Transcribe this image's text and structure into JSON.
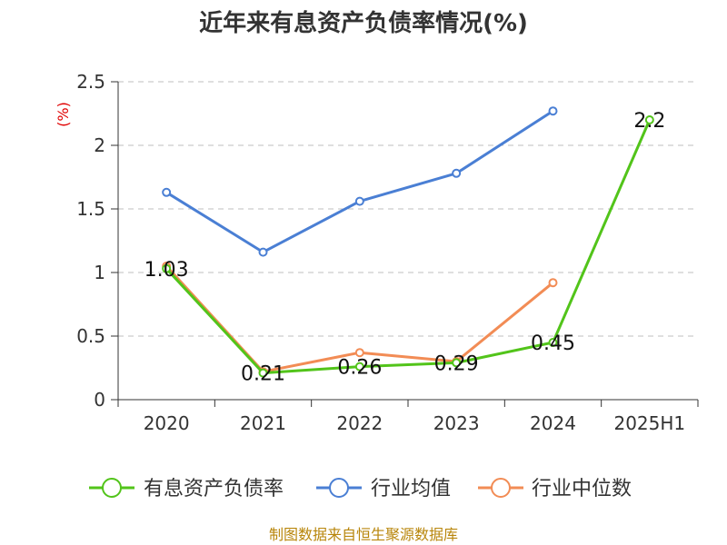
{
  "chart_data": {
    "type": "line",
    "title": "近年来有息资产负债率情况(%)",
    "ylabel": "(%)",
    "categories": [
      "2020",
      "2021",
      "2022",
      "2023",
      "2024",
      "2025H1"
    ],
    "ylim": [
      0,
      2.5
    ],
    "yticks": [
      "0",
      "0.5",
      "1",
      "1.5",
      "2",
      "2.5"
    ],
    "grid": true,
    "legend_position": "bottom",
    "series": [
      {
        "name": "有息资产负债率",
        "color": "#52c41a",
        "values": [
          1.03,
          0.21,
          0.26,
          0.29,
          0.45,
          2.2
        ],
        "labels": [
          "1.03",
          "0.21",
          "0.26",
          "0.29",
          "0.45",
          "2.2"
        ]
      },
      {
        "name": "行业均值",
        "color": "#4a7fd4",
        "values": [
          1.63,
          1.16,
          1.56,
          1.78,
          2.27,
          null
        ]
      },
      {
        "name": "行业中位数",
        "color": "#f28c55",
        "values": [
          1.05,
          0.22,
          0.37,
          0.3,
          0.92,
          null
        ]
      }
    ]
  },
  "source": "制图数据来自恒生聚源数据库"
}
